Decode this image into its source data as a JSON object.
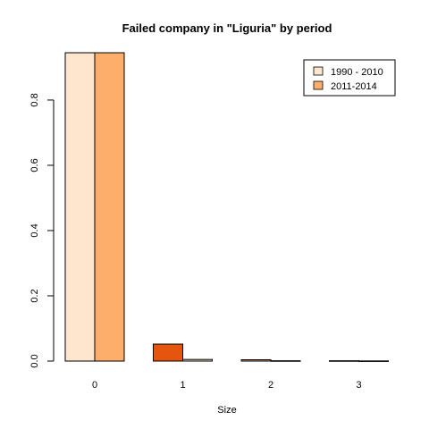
{
  "chart_data": {
    "type": "bar",
    "title": "Failed company in \"Liguria\" by period",
    "xlabel": "Size",
    "ylabel": "",
    "categories": [
      "0",
      "1",
      "2",
      "3"
    ],
    "series": [
      {
        "name": "1990 - 2010",
        "values": [
          0.945,
          0.052,
          0.004,
          0.001
        ]
      },
      {
        "name": "2011-2014",
        "values": [
          0.945,
          0.005,
          0.001,
          0.0005
        ]
      }
    ],
    "bar_colors": [
      [
        "#FEE6CE",
        "#E6550D",
        "#FDAE6B",
        "#A63603"
      ],
      [
        "#FDAE6B",
        "#FEE6CE",
        "#E6550D",
        "#7F2704"
      ]
    ],
    "legend_colors": [
      "#FEE6CE",
      "#FDAE6B"
    ],
    "ylim": [
      0,
      0.945
    ],
    "yticks": [
      0.0,
      0.2,
      0.4,
      0.6,
      0.8
    ],
    "ytick_labels": [
      "0.0",
      "0.2",
      "0.4",
      "0.6",
      "0.8"
    ],
    "legend_position": "top-right",
    "grid": false
  }
}
